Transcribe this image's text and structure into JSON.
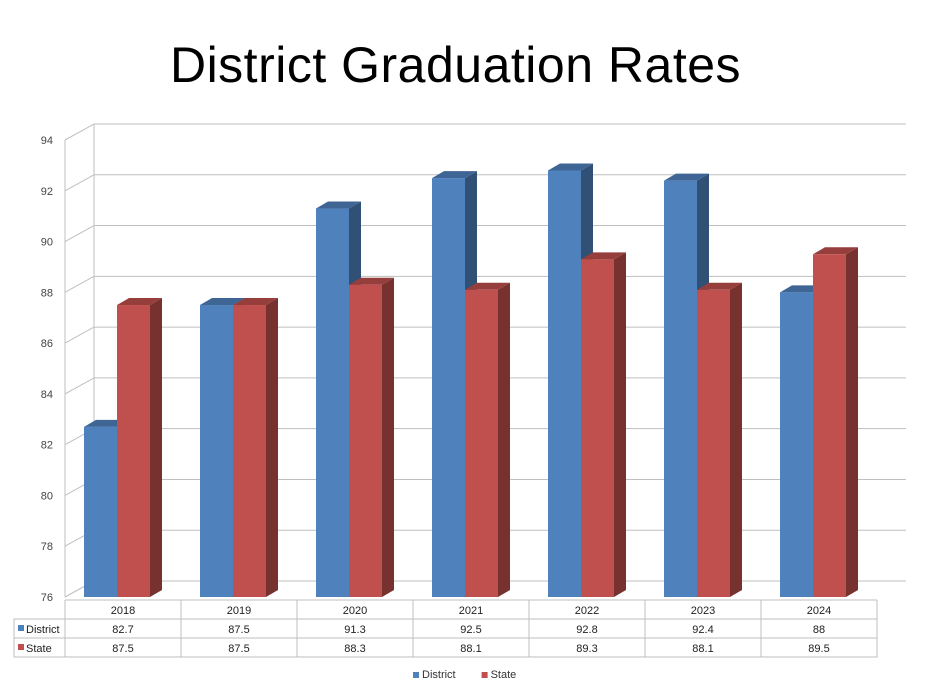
{
  "chart_data": {
    "type": "bar",
    "title": "District Graduation Rates",
    "categories": [
      "2018",
      "2019",
      "2020",
      "2021",
      "2022",
      "2023",
      "2024"
    ],
    "series": [
      {
        "name": "District",
        "values": [
          82.7,
          87.5,
          91.3,
          92.5,
          92.8,
          92.4,
          88
        ],
        "labels": [
          "82.7",
          "87.5",
          "91.3",
          "92.5",
          "92.8",
          "92.4",
          "88"
        ],
        "color": "#4F81BD"
      },
      {
        "name": "State",
        "values": [
          87.5,
          87.5,
          88.3,
          88.1,
          89.3,
          88.1,
          89.5
        ],
        "labels": [
          "87.5",
          "87.5",
          "88.3",
          "88.1",
          "89.3",
          "88.1",
          "89.5"
        ],
        "color": "#C0504D"
      }
    ],
    "yticks": [
      "76",
      "78",
      "80",
      "82",
      "84",
      "86",
      "88",
      "90",
      "92",
      "94"
    ],
    "ylim": [
      76,
      94
    ],
    "grid": true,
    "data_table": true,
    "legend_position": "bottom"
  }
}
